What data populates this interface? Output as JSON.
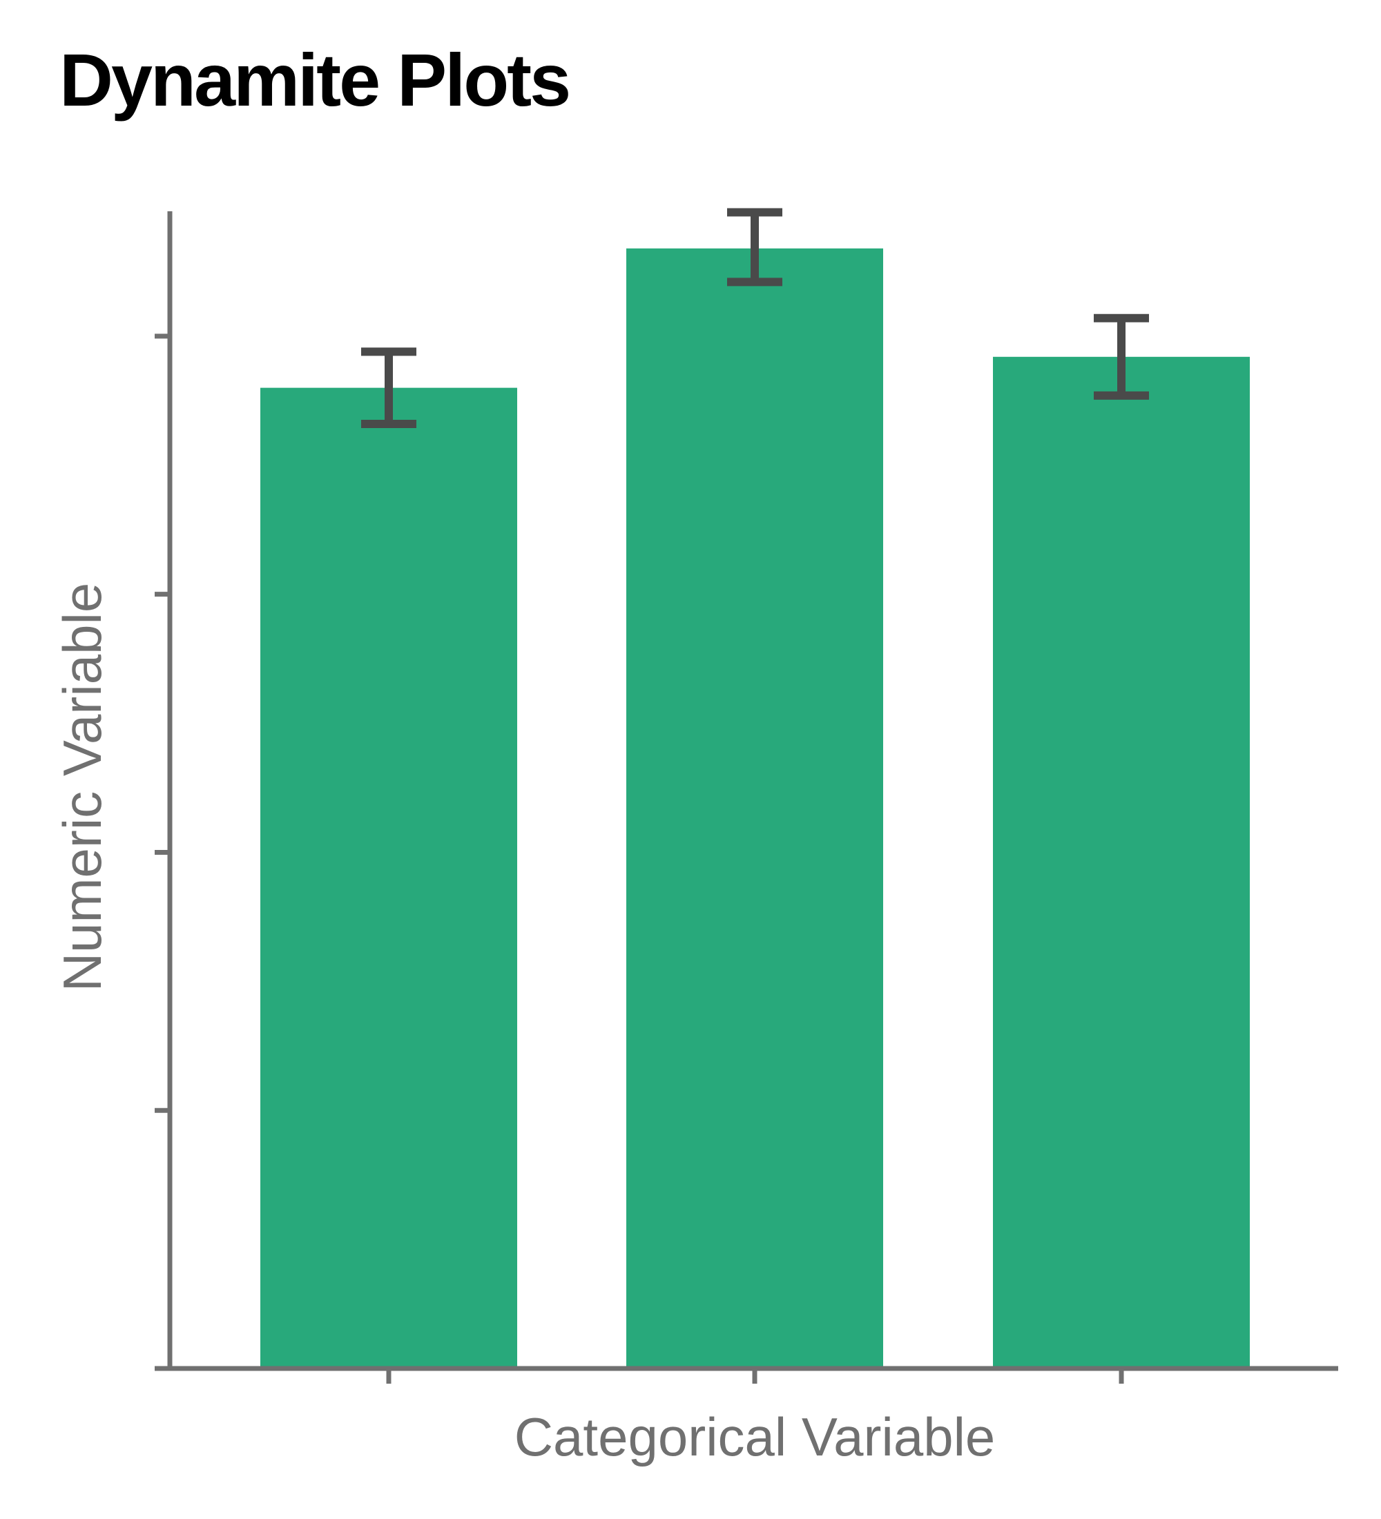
{
  "chart_data": {
    "type": "bar",
    "title": "Dynamite Plots",
    "xlabel": "Categorical Variable",
    "ylabel": "Numeric Variable",
    "categories": [
      "",
      "",
      ""
    ],
    "values": [
      3.8,
      4.34,
      3.92
    ],
    "error_low": [
      3.66,
      4.21,
      3.77
    ],
    "error_high": [
      3.94,
      4.48,
      4.07
    ],
    "ylim": [
      0,
      4.5
    ],
    "yticks": [
      0,
      1,
      2,
      3,
      4
    ],
    "tick_labels_shown": false,
    "grid": false,
    "legend": "none",
    "colors": {
      "bar": "#28a97b",
      "errorbar": "#4a4a4a",
      "axis": "#707070",
      "label": "#707070",
      "title": "#000000"
    }
  }
}
